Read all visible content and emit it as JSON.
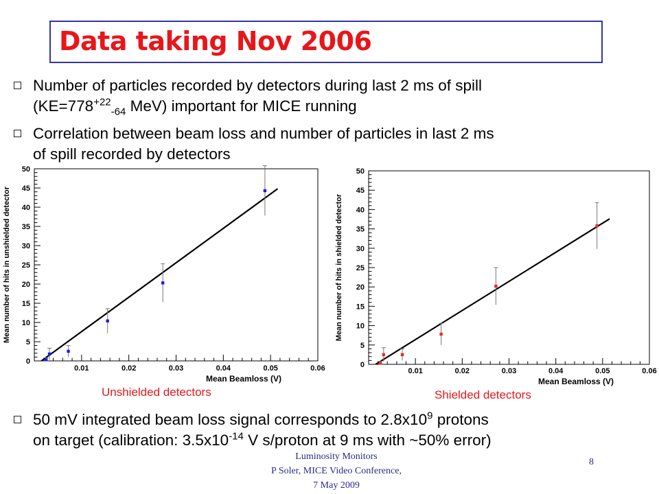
{
  "slide": {
    "title": "Data taking Nov 2006",
    "bullets": [
      {
        "line1": "Number of particles recorded by detectors during last 2 ms of spill",
        "line2_pre": "(KE=778",
        "line2_sup": "+22",
        "line2_sub": "-64",
        "line2_post": " MeV) important for MICE running"
      },
      {
        "line1": "Correlation between beam loss and number of particles in last 2 ms",
        "line2": "of spill recorded by detectors"
      },
      {
        "line1_pre": "50 mV integrated beam loss signal corresponds to 2.8x10",
        "line1_sup": "9",
        "line1_post": " protons",
        "line2_pre": "on target (calibration: 3.5x10",
        "line2_sup": "-14",
        "line2_post": " V s/proton at 9 ms with ~50% error)"
      }
    ],
    "captions": {
      "left": "Unshielded detectors",
      "right": "Shielded detectors"
    },
    "footer": {
      "line1": "Luminosity Monitors",
      "line2": "P Soler, MICE Video Conference,",
      "line3": "7 May 2009",
      "page": "8"
    }
  },
  "chart_data": [
    {
      "type": "scatter",
      "title": "",
      "xlabel": "Mean Beamloss (V)",
      "ylabel": "Mean number of hits in unshielded detector",
      "xlim": [
        0,
        0.06
      ],
      "ylim": [
        0,
        50
      ],
      "xticks": [
        "0.01",
        "0.02",
        "0.03",
        "0.04",
        "0.05",
        "0.06"
      ],
      "yticks": [
        "0",
        "5",
        "10",
        "15",
        "20",
        "25",
        "30",
        "35",
        "40",
        "45",
        "50"
      ],
      "marker_color": "#1a1aff",
      "points": [
        {
          "x": 0.0025,
          "y": 0.3,
          "err": 0.5
        },
        {
          "x": 0.0032,
          "y": 1.8,
          "err": 1.5
        },
        {
          "x": 0.0072,
          "y": 2.5,
          "err": 1.5
        },
        {
          "x": 0.0155,
          "y": 10.4,
          "err": 3.2
        },
        {
          "x": 0.0272,
          "y": 20.3,
          "err": 5.0
        },
        {
          "x": 0.0488,
          "y": 44.3,
          "err": 6.5
        }
      ],
      "fit_line": {
        "x": [
          0.0015,
          0.0515
        ],
        "y": [
          0,
          44.8
        ]
      }
    },
    {
      "type": "scatter",
      "title": "",
      "xlabel": "Mean Beamloss (V)",
      "ylabel": "Mean number of hits in shielded detector",
      "xlim": [
        0,
        0.06
      ],
      "ylim": [
        0,
        50
      ],
      "xticks": [
        "0.01",
        "0.02",
        "0.03",
        "0.04",
        "0.05",
        "0.06"
      ],
      "yticks": [
        "0",
        "5",
        "10",
        "15",
        "20",
        "25",
        "30",
        "35",
        "40",
        "45",
        "50"
      ],
      "marker_color": "#ff2020",
      "points": [
        {
          "x": 0.0025,
          "y": 0.3,
          "err": 0.5
        },
        {
          "x": 0.0032,
          "y": 2.5,
          "err": 1.8
        },
        {
          "x": 0.0072,
          "y": 2.5,
          "err": 1.5
        },
        {
          "x": 0.0155,
          "y": 7.8,
          "err": 2.8
        },
        {
          "x": 0.0272,
          "y": 20.2,
          "err": 4.8
        },
        {
          "x": 0.0488,
          "y": 35.8,
          "err": 6.0
        }
      ],
      "fit_line": {
        "x": [
          0.0015,
          0.0515
        ],
        "y": [
          0,
          37.6
        ]
      }
    }
  ]
}
